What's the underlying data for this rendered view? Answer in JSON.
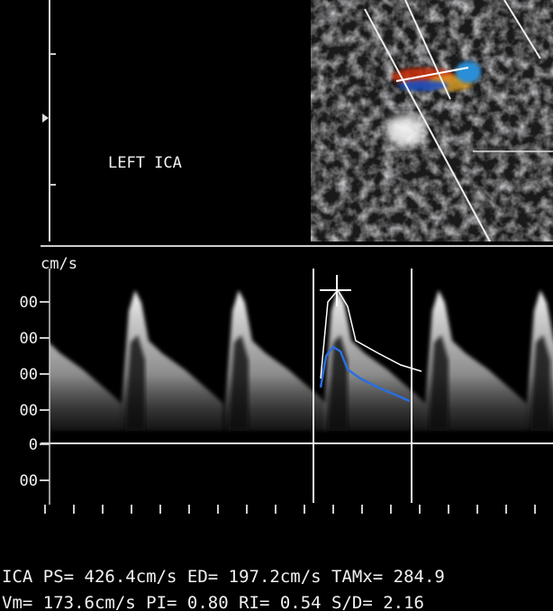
{
  "label": "LEFT ICA",
  "scale": {
    "unit": "cm/s",
    "ticks": [
      "00",
      "00",
      "00",
      "00",
      "0",
      "00"
    ]
  },
  "measurements": [
    "ICA PS= 426.4cm/s ED= 197.2cm/s TAMx= 284.9",
    "Vm= 173.6cm/s PI= 0.80 RI= 0.54 S/D= 2.16"
  ]
}
